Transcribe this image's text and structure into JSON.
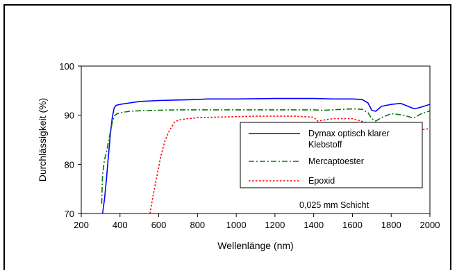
{
  "chart_data": {
    "type": "line",
    "xlabel": "Wellenlänge (nm)",
    "ylabel": "Durchlässigkeit  (%)",
    "xlim": [
      200,
      2000
    ],
    "ylim": [
      70,
      100
    ],
    "xticks": [
      200,
      400,
      600,
      800,
      1000,
      1200,
      1400,
      1600,
      1800,
      2000
    ],
    "yticks": [
      70,
      80,
      90,
      100
    ],
    "grid": false,
    "legend_position": "right",
    "annotation": "0,025 mm Schicht",
    "series": [
      {
        "name_lines": [
          "Dymax optisch klarer",
          "Klebstoff"
        ],
        "color": "#0000ff",
        "dash": "solid",
        "x": [
          310,
          320,
          330,
          340,
          350,
          360,
          370,
          380,
          400,
          450,
          500,
          600,
          700,
          800,
          850,
          1000,
          1200,
          1400,
          1500,
          1600,
          1650,
          1680,
          1700,
          1720,
          1750,
          1800,
          1850,
          1900,
          1920,
          1950,
          2000
        ],
        "y": [
          70.0,
          73.0,
          77.0,
          81.5,
          86.0,
          89.5,
          91.5,
          92.0,
          92.2,
          92.5,
          92.8,
          93.0,
          93.1,
          93.2,
          93.3,
          93.3,
          93.4,
          93.4,
          93.3,
          93.3,
          93.2,
          92.5,
          91.0,
          90.8,
          91.8,
          92.2,
          92.4,
          91.6,
          91.3,
          91.6,
          92.2
        ]
      },
      {
        "name_lines": [
          "Mercaptoester"
        ],
        "color": "#007a00",
        "dash": "dashdot",
        "x": [
          305,
          310,
          320,
          330,
          340,
          350,
          360,
          370,
          380,
          400,
          450,
          500,
          600,
          700,
          800,
          900,
          1000,
          1200,
          1400,
          1450,
          1500,
          1600,
          1650,
          1680,
          1700,
          1720,
          1750,
          1800,
          1850,
          1900,
          1920,
          1950,
          2000
        ],
        "y": [
          72.0,
          78.0,
          81.0,
          82.5,
          84.5,
          86.5,
          88.5,
          89.8,
          90.2,
          90.5,
          90.8,
          90.9,
          91.0,
          91.1,
          91.1,
          91.1,
          91.1,
          91.1,
          91.1,
          91.0,
          91.1,
          91.3,
          91.2,
          90.5,
          89.3,
          88.8,
          89.5,
          90.3,
          90.1,
          89.6,
          89.5,
          90.2,
          90.9
        ]
      },
      {
        "name_lines": [
          "Epoxid"
        ],
        "color": "#ff0000",
        "dash": "dotted",
        "x": [
          555,
          570,
          590,
          610,
          630,
          650,
          680,
          700,
          750,
          800,
          900,
          1000,
          1100,
          1200,
          1300,
          1400,
          1420,
          1450,
          1500,
          1600,
          1700,
          1800,
          1900,
          1950,
          2000
        ],
        "y": [
          70.0,
          73.5,
          77.5,
          81.5,
          84.5,
          86.5,
          88.5,
          89.0,
          89.3,
          89.5,
          89.6,
          89.7,
          89.8,
          89.8,
          89.8,
          89.6,
          88.8,
          89.0,
          89.3,
          89.3,
          88.2,
          88.0,
          87.5,
          87.0,
          87.3
        ]
      }
    ]
  }
}
